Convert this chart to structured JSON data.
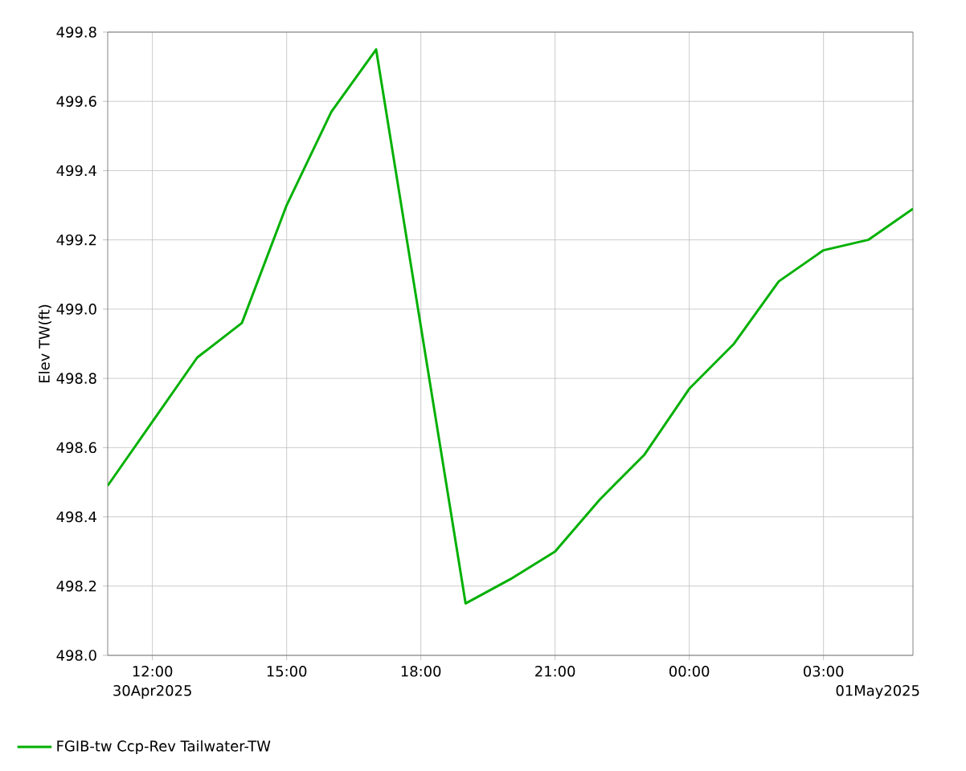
{
  "chart_data": {
    "type": "line",
    "ylabel": "Elev TW(ft)",
    "x": [
      "2025-04-30T11:00",
      "2025-04-30T13:00",
      "2025-04-30T14:00",
      "2025-04-30T15:00",
      "2025-04-30T16:00",
      "2025-04-30T17:00",
      "2025-04-30T19:00",
      "2025-04-30T20:00",
      "2025-04-30T21:00",
      "2025-04-30T22:00",
      "2025-04-30T23:00",
      "2025-05-01T00:00",
      "2025-05-01T01:00",
      "2025-05-01T02:00",
      "2025-05-01T03:00",
      "2025-05-01T04:00",
      "2025-05-01T05:00"
    ],
    "series": [
      {
        "name": "FGIB-tw Ccp-Rev Tailwater-TW",
        "color": "#00b000",
        "values": [
          498.49,
          498.86,
          498.96,
          499.3,
          499.57,
          499.75,
          498.15,
          498.22,
          498.3,
          498.45,
          498.58,
          498.77,
          498.9,
          499.08,
          499.17,
          499.2,
          499.29
        ]
      }
    ],
    "xlim": [
      "2025-04-30T11:00",
      "2025-05-01T05:00"
    ],
    "xticks": [
      {
        "value": "2025-04-30T12:00",
        "label": "12:00"
      },
      {
        "value": "2025-04-30T15:00",
        "label": "15:00"
      },
      {
        "value": "2025-04-30T18:00",
        "label": "18:00"
      },
      {
        "value": "2025-04-30T21:00",
        "label": "21:00"
      },
      {
        "value": "2025-05-01T00:00",
        "label": "00:00"
      },
      {
        "value": "2025-05-01T03:00",
        "label": "03:00"
      }
    ],
    "ylim": [
      498.0,
      499.8
    ],
    "yticks": [
      {
        "value": 498.0,
        "label": "498.0"
      },
      {
        "value": 498.2,
        "label": "498.2"
      },
      {
        "value": 498.4,
        "label": "498.4"
      },
      {
        "value": 498.6,
        "label": "498.6"
      },
      {
        "value": 498.8,
        "label": "498.8"
      },
      {
        "value": 499.0,
        "label": "499.0"
      },
      {
        "value": 499.2,
        "label": "499.2"
      },
      {
        "value": 499.4,
        "label": "499.4"
      },
      {
        "value": 499.6,
        "label": "499.6"
      },
      {
        "value": 499.8,
        "label": "499.8"
      }
    ],
    "annotations": [
      "30Apr2025",
      "01May2025"
    ],
    "grid": true,
    "legend": "bottom left",
    "marker": "none",
    "line_style": "solid"
  }
}
